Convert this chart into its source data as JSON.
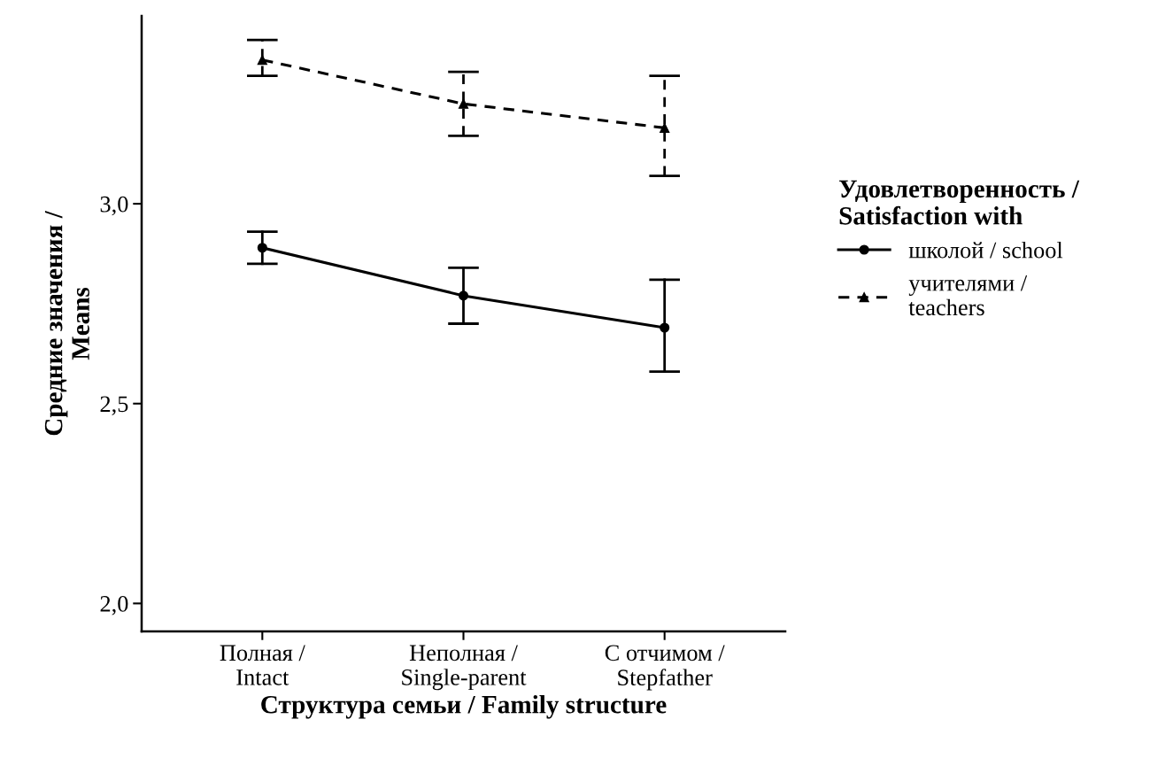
{
  "chart_data": {
    "type": "line",
    "categories": [
      "Полная /\nIntact",
      "Неполная /\nSingle-parent",
      "С отчимом /\nStepfather"
    ],
    "xlabel": "Структура семьи / Family structure",
    "ylabel": "Средние значения /\nMeans",
    "legend_title": "Удовлетворенность /\nSatisfaction with",
    "ylim": [
      1.93,
      3.47
    ],
    "yticks": [
      {
        "value": 2.0,
        "label": "2,0"
      },
      {
        "value": 2.5,
        "label": "2,5"
      },
      {
        "value": 3.0,
        "label": "3,0"
      }
    ],
    "grid": false,
    "legend": "right",
    "series": [
      {
        "name": "школой / school",
        "color": "#000000",
        "marker": "circle",
        "line_style": "solid",
        "values": [
          2.89,
          2.77,
          2.69
        ],
        "errors": [
          [
            2.85,
            2.93
          ],
          [
            2.7,
            2.84
          ],
          [
            2.58,
            2.81
          ]
        ]
      },
      {
        "name": "учителями /\nteachers",
        "color": "#000000",
        "marker": "triangle",
        "line_style": "dashed",
        "values": [
          3.36,
          3.25,
          3.19
        ],
        "errors": [
          [
            3.32,
            3.41
          ],
          [
            3.17,
            3.33
          ],
          [
            3.07,
            3.32
          ]
        ]
      }
    ]
  }
}
